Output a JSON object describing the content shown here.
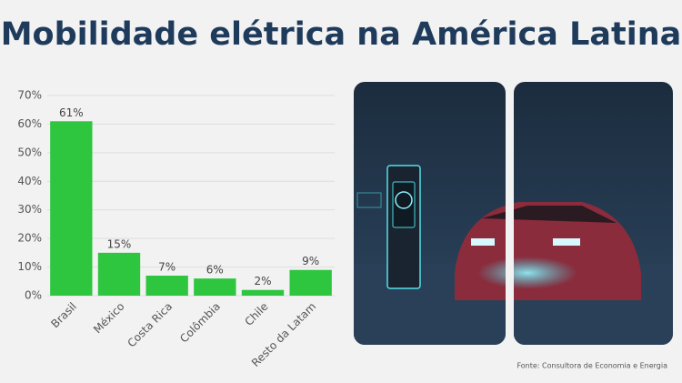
{
  "chart_data": {
    "type": "bar",
    "title": "Mobilidade elétrica na América Latina",
    "categories": [
      "Brasil",
      "México",
      "Costa Rica",
      "Colômbia",
      "Chile",
      "Resto da Latam"
    ],
    "values": [
      61,
      15,
      7,
      6,
      2,
      9
    ],
    "value_labels": [
      "61%",
      "15%",
      "7%",
      "6%",
      "2%",
      "9%"
    ],
    "color": "#2ec53f",
    "ylim": [
      0,
      70
    ],
    "yticks": [
      {
        "value": 0,
        "label": "0%"
      },
      {
        "value": 10,
        "label": "10%"
      },
      {
        "value": 20,
        "label": "20%"
      },
      {
        "value": 30,
        "label": "30%"
      },
      {
        "value": 40,
        "label": "40%"
      },
      {
        "value": 50,
        "label": "50%"
      },
      {
        "value": 60,
        "label": "60%"
      },
      {
        "value": 70,
        "label": "70%"
      }
    ],
    "grid": true,
    "source": "Fonte: Consultora de Economia e Energia"
  }
}
